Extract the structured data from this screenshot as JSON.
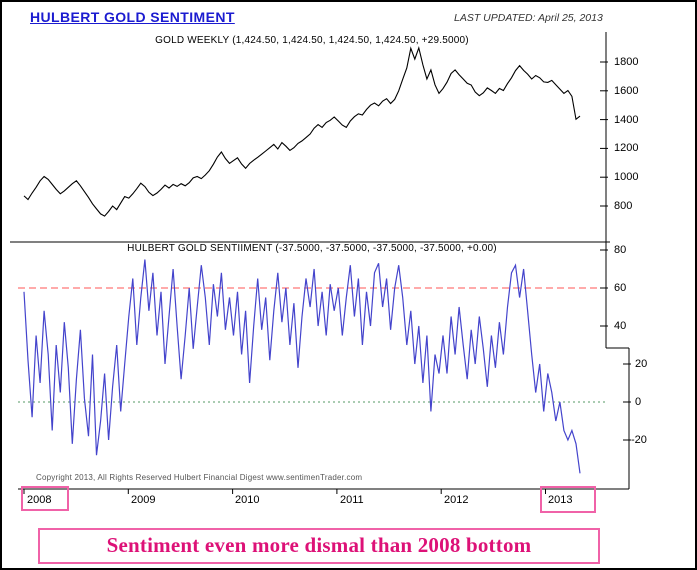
{
  "header": {
    "title": "HULBERT GOLD SENTIMENT",
    "last_updated": "LAST UPDATED:  April 25, 2013"
  },
  "copyright": "Copyright 2013, All Rights Reserved  Hulbert Financial Digest  www.sentimenTrader.com",
  "caption": "Sentiment even more dismal than 2008 bottom",
  "colors": {
    "header_blue": "#1b1bd0",
    "accent_pink": "#f062a8",
    "caption_magenta": "#dd1177",
    "gold_line": "#000000",
    "sentiment_line": "#4444cc",
    "overbought_line": "#ff5555",
    "zero_line": "#559966"
  },
  "chart_data": [
    {
      "type": "line",
      "title": "GOLD WEEKLY (1,424.50, 1,424.50, 1,424.50, 1,424.50, +29.5000)",
      "xlabel": "",
      "ylabel": "",
      "ylim": [
        700,
        1950
      ],
      "yticks": [
        1800,
        1600,
        1400,
        1200,
        1000,
        800
      ],
      "ytick_labels": [
        "1800",
        "1600",
        "1400",
        "1200",
        "1000",
        "800"
      ],
      "x_range": [
        "2008",
        "2013 (April)"
      ],
      "grid": false,
      "legend": "none",
      "series": [
        {
          "name": "Gold Weekly Close",
          "color": "#000000",
          "values": [
            870,
            845,
            890,
            930,
            975,
            1005,
            985,
            950,
            915,
            885,
            905,
            930,
            955,
            975,
            940,
            900,
            860,
            815,
            780,
            745,
            730,
            762,
            800,
            775,
            820,
            865,
            855,
            885,
            920,
            958,
            935,
            895,
            872,
            890,
            915,
            945,
            925,
            950,
            936,
            955,
            940,
            962,
            995,
            1005,
            990,
            1015,
            1045,
            1090,
            1140,
            1175,
            1130,
            1096,
            1115,
            1135,
            1092,
            1062,
            1095,
            1118,
            1138,
            1160,
            1182,
            1205,
            1228,
            1196,
            1240,
            1215,
            1186,
            1205,
            1235,
            1252,
            1275,
            1300,
            1340,
            1365,
            1346,
            1380,
            1395,
            1418,
            1390,
            1362,
            1346,
            1390,
            1420,
            1440,
            1432,
            1470,
            1500,
            1515,
            1496,
            1528,
            1545,
            1512,
            1540,
            1600,
            1680,
            1758,
            1895,
            1820,
            1898,
            1780,
            1682,
            1745,
            1642,
            1582,
            1615,
            1660,
            1720,
            1745,
            1712,
            1682,
            1652,
            1640,
            1592,
            1566,
            1586,
            1620,
            1602,
            1582,
            1616,
            1602,
            1650,
            1690,
            1740,
            1775,
            1742,
            1716,
            1682,
            1706,
            1690,
            1662,
            1658,
            1672,
            1642,
            1612,
            1582,
            1602,
            1562,
            1402,
            1424
          ]
        }
      ]
    },
    {
      "type": "line",
      "title": "HULBERT GOLD SENTIIMENT (-37.5000, -37.5000, -37.5000, -37.5000, +0.00)",
      "xlabel": "",
      "ylabel": "",
      "ylim": [
        -45,
        85
      ],
      "yticks": [
        80,
        60,
        40,
        20,
        0,
        -20
      ],
      "ytick_labels": [
        "80",
        "60",
        "40",
        "20",
        "0",
        "-20"
      ],
      "xtick_labels": [
        "2008",
        "2009",
        "2010",
        "2011",
        "2012",
        "2013"
      ],
      "grid": false,
      "legend": "none",
      "reference_lines": [
        {
          "value": 60,
          "style": "dashed",
          "color": "#ff5555"
        },
        {
          "value": 0,
          "style": "dotted",
          "color": "#559966"
        }
      ],
      "series": [
        {
          "name": "Hulbert Gold Sentiment",
          "color": "#4444cc",
          "values": [
            58,
            22,
            -8,
            35,
            10,
            48,
            25,
            -15,
            30,
            5,
            42,
            18,
            -22,
            12,
            38,
            2,
            -18,
            25,
            -28,
            -10,
            15,
            -20,
            8,
            30,
            -5,
            20,
            45,
            65,
            30,
            55,
            75,
            48,
            68,
            35,
            58,
            20,
            45,
            70,
            40,
            12,
            35,
            60,
            28,
            50,
            72,
            55,
            30,
            62,
            45,
            68,
            38,
            55,
            35,
            58,
            25,
            48,
            10,
            40,
            65,
            38,
            55,
            22,
            48,
            68,
            42,
            60,
            30,
            52,
            18,
            45,
            65,
            50,
            70,
            40,
            58,
            35,
            62,
            48,
            60,
            35,
            55,
            72,
            45,
            65,
            30,
            58,
            40,
            68,
            73,
            50,
            65,
            38,
            60,
            72,
            55,
            30,
            48,
            20,
            40,
            10,
            35,
            -5,
            25,
            15,
            35,
            15,
            45,
            25,
            50,
            30,
            12,
            38,
            20,
            45,
            28,
            8,
            35,
            18,
            42,
            25,
            50,
            68,
            72,
            55,
            70,
            48,
            25,
            5,
            20,
            -5,
            15,
            5,
            -10,
            0,
            -15,
            -20,
            -15,
            -22,
            -37.5
          ]
        }
      ]
    }
  ]
}
